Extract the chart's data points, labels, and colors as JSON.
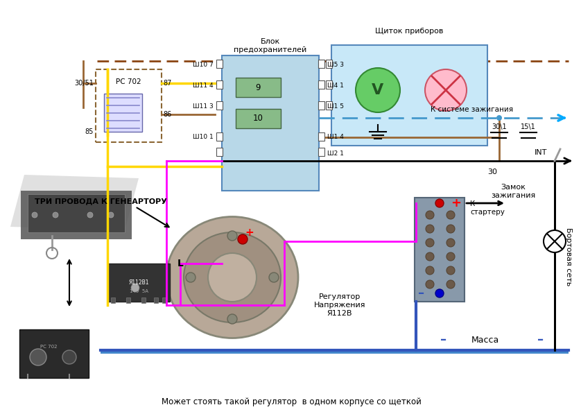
{
  "bg_color": "#ffffff",
  "figsize": [
    8.38,
    5.97
  ],
  "dpi": 100,
  "texts": {
    "blok": "Блок\nпредохранителей",
    "shchitok": "Щиток приборов",
    "tri_provoda": "ТРИ ПРОВОДА К ГЕНЕАРТОРУ",
    "regl": "Регулятор\nНапряжения\nЯ112В",
    "zamok": "Замок\nзажигания",
    "k_sisteme": "К системе зажигания",
    "k_starteru": "К\nстартеру",
    "bortovaya": "Бортовая сеть",
    "massa": "Масса",
    "mojet": "Может стоять такой регулятор  в одном корпусе со щеткой",
    "pc702": "РС 702",
    "int_label": "INT",
    "sh107": "Ш10 7",
    "sh114": "Ш11 4",
    "sh113": "Ш11 3",
    "sh101": "Ш10 1",
    "sh53": "Ш5 3",
    "sh41": "Ш4 1",
    "sh15": "Ш1 5",
    "sh14": "Ш1 4",
    "sh21": "Ш2 1",
    "n9": "9",
    "n10": "10",
    "label30": "30",
    "label301": "30\\1",
    "label151": "15\\1",
    "label87": "87",
    "label86": "86",
    "label85": "85",
    "label3051": "30/51",
    "label_l": "L",
    "minus_str": "–",
    "plus_str": "+"
  },
  "colors": {
    "brown_dashed": "#8B4513",
    "yellow": "#FFD700",
    "magenta": "#FF00FF",
    "cyan_dashed": "#00BFFF",
    "black": "#000000",
    "fuse_blue": "#B8D8E8",
    "fuse_blue_edge": "#5588BB",
    "green_fuse": "#88BB88",
    "dash_blue": "#4499CC",
    "dashboard_bg": "#C8E8F8",
    "voltmeter_green": "#44BB44",
    "battery_gray": "#8899AA",
    "battery_edge": "#556677",
    "relay_edge": "#8B6633",
    "ground_blue": "#3355BB",
    "wire_brown": "#996633",
    "wire_orange": "#FF8800",
    "cyan_arrow": "#00AAFF"
  }
}
